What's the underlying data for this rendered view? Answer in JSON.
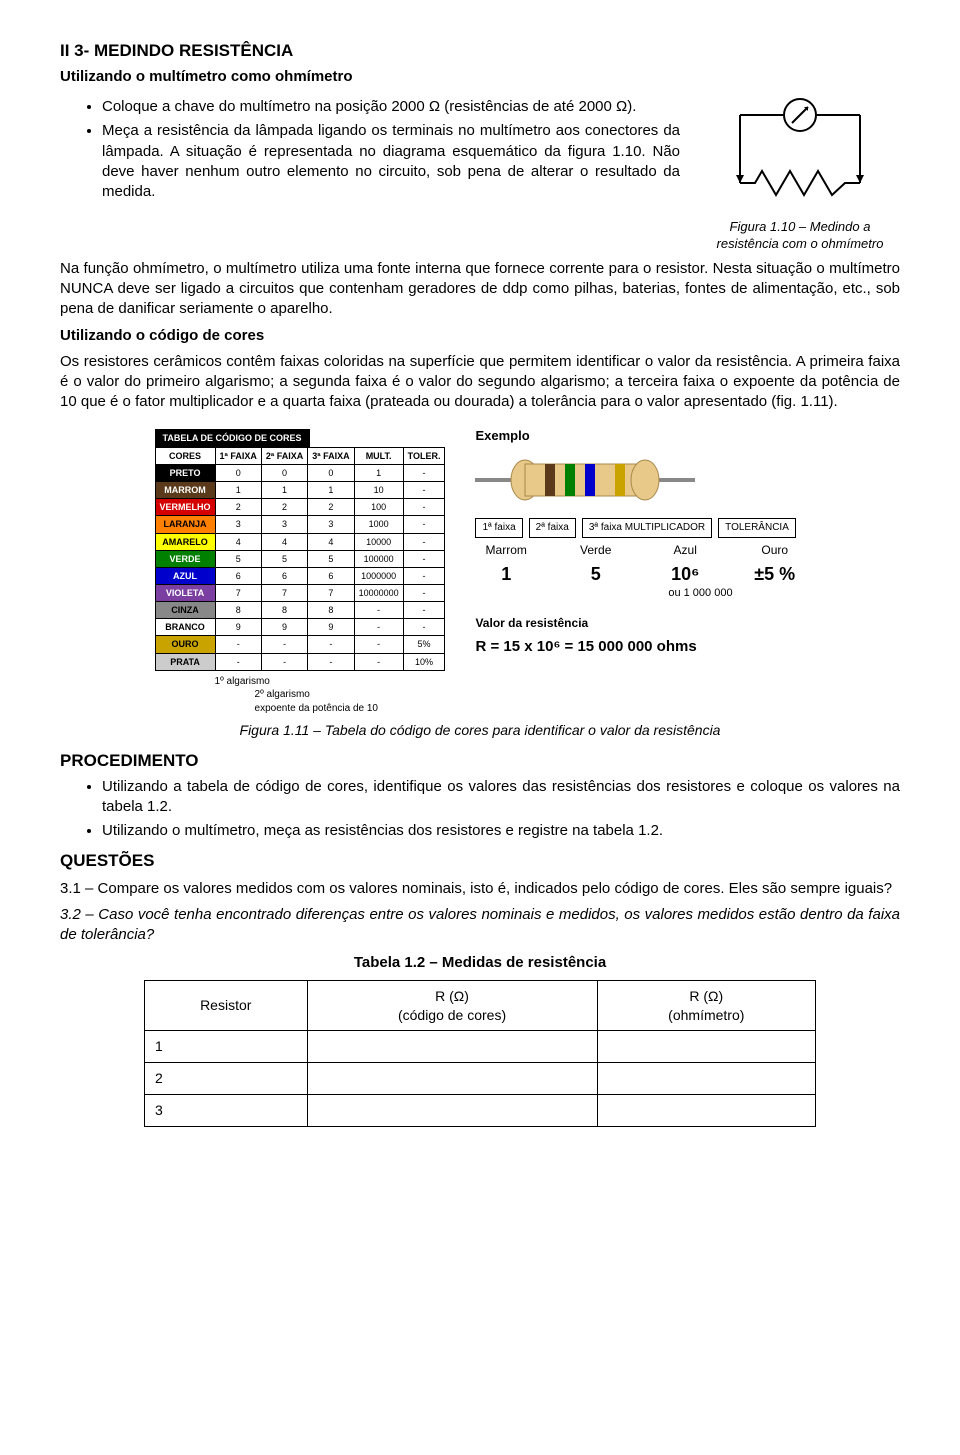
{
  "section": {
    "title": "II 3- MEDINDO RESISTÊNCIA",
    "sub1": "Utilizando o multímetro como ohmímetro",
    "bullets1": [
      "Coloque a chave do multímetro na posição 2000 Ω (resistências de até 2000 Ω).",
      "Meça a resistência da lâmpada ligando os terminais no multímetro aos conectores da lâmpada. A situação é representada no diagrama esquemático da figura 1.10. Não deve haver nenhum outro elemento no circuito, sob pena de alterar o resultado da medida."
    ],
    "fig110_caption": "Figura 1.10 – Medindo a resistência com o ohmímetro",
    "p_after1": "Na função ohmímetro, o multímetro utiliza uma fonte interna que fornece corrente para o resistor. Nesta situação o multímetro NUNCA deve ser ligado a circuitos que contenham geradores de ddp como pilhas, baterias, fontes de alimentação, etc., sob pena de danificar seriamente o aparelho.",
    "sub2": "Utilizando o código de cores",
    "p_after2": "Os resistores cerâmicos contêm faixas coloridas na superfície que permitem identificar o valor da resistência. A primeira faixa é o valor do primeiro algarismo; a segunda faixa é o valor do segundo algarismo; a terceira faixa o expoente da potência de 10 que é o fator multiplicador e a quarta faixa (prateada ou dourada) a tolerância para o valor apresentado (fig. 1.11)."
  },
  "color_table": {
    "header_strip": "TABELA DE CÓDIGO DE CORES",
    "cols": [
      "CORES",
      "1ª FAIXA",
      "2ª FAIXA",
      "3ª FAIXA",
      "MULT.",
      "TOLER."
    ],
    "rows": [
      {
        "name": "PRETO",
        "hex": "#000000",
        "txt": "#fff",
        "v": [
          "0",
          "0",
          "0",
          "1",
          "-"
        ]
      },
      {
        "name": "MARROM",
        "hex": "#5a3a1a",
        "txt": "#fff",
        "v": [
          "1",
          "1",
          "1",
          "10",
          "-"
        ]
      },
      {
        "name": "VERMELHO",
        "hex": "#d40000",
        "txt": "#fff",
        "v": [
          "2",
          "2",
          "2",
          "100",
          "-"
        ]
      },
      {
        "name": "LARANJA",
        "hex": "#ff7f00",
        "txt": "#000",
        "v": [
          "3",
          "3",
          "3",
          "1000",
          "-"
        ]
      },
      {
        "name": "AMARELO",
        "hex": "#ffff00",
        "txt": "#000",
        "v": [
          "4",
          "4",
          "4",
          "10000",
          "-"
        ]
      },
      {
        "name": "VERDE",
        "hex": "#008000",
        "txt": "#fff",
        "v": [
          "5",
          "5",
          "5",
          "100000",
          "-"
        ]
      },
      {
        "name": "AZUL",
        "hex": "#0000cc",
        "txt": "#fff",
        "v": [
          "6",
          "6",
          "6",
          "1000000",
          "-"
        ]
      },
      {
        "name": "VIOLETA",
        "hex": "#7a3fa0",
        "txt": "#fff",
        "v": [
          "7",
          "7",
          "7",
          "10000000",
          "-"
        ]
      },
      {
        "name": "CINZA",
        "hex": "#888888",
        "txt": "#000",
        "v": [
          "8",
          "8",
          "8",
          "-",
          "-"
        ]
      },
      {
        "name": "BRANCO",
        "hex": "#ffffff",
        "txt": "#000",
        "v": [
          "9",
          "9",
          "9",
          "-",
          "-"
        ]
      },
      {
        "name": "OURO",
        "hex": "#c9a300",
        "txt": "#000",
        "v": [
          "-",
          "-",
          "-",
          "-",
          "5%"
        ]
      },
      {
        "name": "PRATA",
        "hex": "#cccccc",
        "txt": "#000",
        "v": [
          "-",
          "-",
          "-",
          "-",
          "10%"
        ]
      }
    ],
    "annot1": "1º algarismo",
    "annot2": "2º algarismo",
    "annot3": "expoente da potência de 10"
  },
  "example": {
    "title": "Exemplo",
    "boxes": [
      "1ª faixa",
      "2ª faixa",
      "3ª faixa MULTIPLICADOR",
      "TOLERÂNCIA"
    ],
    "labels": [
      "Marrom",
      "Verde",
      "Azul",
      "Ouro"
    ],
    "vals": [
      "1",
      "5",
      "10⁶",
      "±5 %"
    ],
    "sub_val": "ou  1 000 000",
    "res_label": "Valor da resistência",
    "res_formula": "R = 15 x 10⁶  = 15 000 000 ohms",
    "resistor_colors": {
      "body": "#e8c98a",
      "band1": "#5a3a1a",
      "band2": "#008000",
      "band3": "#0000cc",
      "band4": "#c9a300",
      "lead": "#888888"
    }
  },
  "fig111_caption": "Figura 1.11 – Tabela do código de cores para identificar o valor da resistência",
  "procedimento": {
    "title": "PROCEDIMENTO",
    "bullets": [
      "Utilizando a tabela de código de cores, identifique os valores das resistências dos resistores e coloque os valores na tabela 1.2.",
      "Utilizando o multímetro, meça as resistências dos resistores e registre na tabela 1.2."
    ]
  },
  "questoes": {
    "title": "QUESTÕES",
    "q1": "3.1 – Compare os valores medidos com os valores nominais, isto é, indicados pelo código de cores. Eles são sempre iguais?",
    "q2": "3.2 – Caso você tenha encontrado diferenças entre os valores nominais e medidos, os valores medidos estão dentro da faixa de tolerância?"
  },
  "table12": {
    "title": "Tabela 1.2 – Medidas de resistência",
    "cols": [
      "Resistor",
      "R (Ω)\n(código de cores)",
      "R (Ω)\n(ohmímetro)"
    ],
    "rows": [
      "1",
      "2",
      "3"
    ]
  },
  "ohm_svg": {
    "stroke": "#000",
    "bg": "#fff"
  }
}
